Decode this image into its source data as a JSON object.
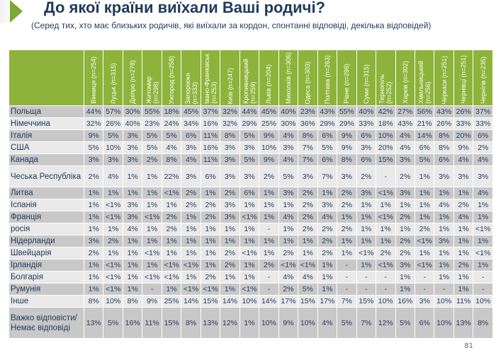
{
  "title": "До якої країни виїхали Ваші родичі?",
  "subtitle": "(Серед тих, хто має близьких родичів, які виїхали за кордон, спонтанні відповіді, декілька відповідей)",
  "page_number": "81",
  "colors": {
    "header": "#8db33a",
    "row_dark": "#c8c8c8",
    "row_light": "#e9e9e9",
    "text": "#1f3a5a"
  },
  "columns": [
    "Вінниця (n=254)",
    "Луцьк (n=315)",
    "Дніпро (n=278)",
    "Житомир\n(n=298)",
    "Ужгород (n=258)",
    "Запоріжжя\n(n=333)",
    "Івано-Франківськ\n(n=253)",
    "Київ (n=247)",
    "Кропивницький\n(n=259)",
    "Львів (n=204)",
    "Миколаїв (n=306)",
    "Одеса (n=303)",
    "Полтава (n=263)",
    "Рівне (n=298)",
    "Суми (n=315)",
    "Тернопіль\n(n=252)",
    "Харків (n=302)",
    "Хмельницький\n(n=256)",
    "Черкаси (n=251)",
    "Чернівці (n=251)",
    "Чернігів (n=235)"
  ],
  "rows": [
    {
      "label": "Польща",
      "values": [
        "44%",
        "57%",
        "30%",
        "55%",
        "18%",
        "45%",
        "37%",
        "32%",
        "44%",
        "45%",
        "40%",
        "23%",
        "43%",
        "55%",
        "40%",
        "42%",
        "27%",
        "56%",
        "43%",
        "26%",
        "37%"
      ]
    },
    {
      "label": "Німеччина",
      "values": [
        "32%",
        "26%",
        "40%",
        "23%",
        "24%",
        "34%",
        "16%",
        "32%",
        "29%",
        "25%",
        "30%",
        "36%",
        "29%",
        "29%",
        "33%",
        "18%",
        "43%",
        "21%",
        "26%",
        "33%",
        "33%"
      ]
    },
    {
      "label": "Італія",
      "values": [
        "9%",
        "5%",
        "3%",
        "5%",
        "5%",
        "6%",
        "11%",
        "8%",
        "5%",
        "9%",
        "4%",
        "8%",
        "6%",
        "9%",
        "6%",
        "10%",
        "4%",
        "14%",
        "8%",
        "20%",
        "6%"
      ]
    },
    {
      "label": "США",
      "values": [
        "5%",
        "10%",
        "3%",
        "5%",
        "4%",
        "3%",
        "16%",
        "3%",
        "3%",
        "10%",
        "3%",
        "7%",
        "5%",
        "9%",
        "3%",
        "20%",
        "4%",
        "6%",
        "8%",
        "9%",
        "2%"
      ]
    },
    {
      "label": "Канада",
      "values": [
        "3%",
        "3%",
        "3%",
        "2%",
        "8%",
        "4%",
        "11%",
        "3%",
        "5%",
        "9%",
        "4%",
        "7%",
        "6%",
        "8%",
        "6%",
        "15%",
        "3%",
        "5%",
        "6%",
        "4%",
        "4%"
      ]
    },
    {
      "label": "Чеська Республіка",
      "values": [
        "2%",
        "4%",
        "1%",
        "1%",
        "22%",
        "3%",
        "6%",
        "3%",
        "3%",
        "2%",
        "5%",
        "3%",
        "7%",
        "3%",
        "2%",
        "-",
        "2%",
        "1%",
        "3%",
        "3%",
        "3%"
      ]
    },
    {
      "label": "Литва",
      "values": [
        "1%",
        "1%",
        "1%",
        "1%",
        "<1%",
        "2%",
        "1%",
        "2%",
        "6%",
        "1%",
        "3%",
        "2%",
        "1%",
        "2%",
        "3%",
        "<1%",
        "3%",
        "1%",
        "1%",
        "1%",
        "4%"
      ]
    },
    {
      "label": "Іспанія",
      "values": [
        "1%",
        "<1%",
        "3%",
        "1%",
        "1%",
        "2%",
        "2%",
        "3%",
        "1%",
        "1%",
        "1%",
        "2%",
        "3%",
        "2%",
        "1%",
        "1%",
        "1%",
        "1%",
        "4%",
        "2%",
        "1%"
      ]
    },
    {
      "label": "Франція",
      "values": [
        "1%",
        "<1%",
        "3%",
        "<1%",
        "2%",
        "1%",
        "2%",
        "3%",
        "<1%",
        "1%",
        "4%",
        "2%",
        "4%",
        "1%",
        "1%",
        "<1%",
        "2%",
        "1%",
        "1%",
        "4%",
        "1%"
      ]
    },
    {
      "label": "росія",
      "values": [
        "1%",
        "1%",
        "4%",
        "1%",
        "2%",
        "1%",
        "1%",
        "1%",
        "1%",
        "-",
        "1%",
        "2%",
        "2%",
        "2%",
        "1%",
        "1%",
        "1%",
        "2%",
        "1%",
        "1%",
        "<1%"
      ]
    },
    {
      "label": "Нідерланди",
      "values": [
        "3%",
        "2%",
        "1%",
        "1%",
        "1%",
        "1%",
        "1%",
        "1%",
        "1%",
        "1%",
        "1%",
        "1%",
        "2%",
        "1%",
        "1%",
        "1%",
        "2%",
        "<1%",
        "3%",
        "1%",
        "1%"
      ]
    },
    {
      "label": "Швейцарія",
      "values": [
        "2%",
        "1%",
        "1%",
        "<1%",
        "1%",
        "1%",
        "1%",
        "2%",
        "<1%",
        "1%",
        "2%",
        "1%",
        "2%",
        "1%",
        "<1%",
        "2%",
        "2%",
        "1%",
        "1%",
        "1%",
        "<1%"
      ]
    },
    {
      "label": "Ірландія",
      "values": [
        "1%",
        "<1%",
        "1%",
        "1%",
        "<1%",
        "<1%",
        "1%",
        "2%",
        "1%",
        "2%",
        "<1%",
        "<1%",
        "1%",
        "-",
        "1%",
        "<1%",
        "3%",
        "<1%",
        "1%",
        "2%",
        "1%"
      ]
    },
    {
      "label": "Болгарія",
      "values": [
        "1%",
        "<1%",
        "1%",
        "<1%",
        "<1%",
        "1%",
        "2%",
        "1%",
        "1%",
        "-",
        "4%",
        "4%",
        "1%",
        "-",
        "-",
        "-",
        "1%",
        "-",
        "1%",
        "1%",
        "-"
      ]
    },
    {
      "label": "Румунія",
      "values": [
        "1%",
        "<1%",
        "1%",
        "-",
        "1%",
        "<1%",
        "<1%",
        "1%",
        "<1%",
        "-",
        "2%",
        "5%",
        "1%",
        "-",
        "-",
        "-",
        "1%",
        "-",
        "-",
        "1%",
        "-"
      ]
    },
    {
      "label": "Інше",
      "values": [
        "8%",
        "10%",
        "8%",
        "9%",
        "25%",
        "14%",
        "15%",
        "14%",
        "10%",
        "14%",
        "17%",
        "15%",
        "17%",
        "7%",
        "15%",
        "10%",
        "16%",
        "3%",
        "10%",
        "11%",
        "10%"
      ]
    },
    {
      "label": "Важко відповісти/Немає відповіді",
      "values": [
        "13%",
        "5%",
        "16%",
        "11%",
        "15%",
        "8%",
        "13%",
        "12%",
        "1%",
        "10%",
        "9%",
        "10%",
        "4%",
        "5%",
        "7%",
        "12%",
        "5%",
        "6%",
        "10%",
        "13%",
        "8%"
      ]
    }
  ]
}
